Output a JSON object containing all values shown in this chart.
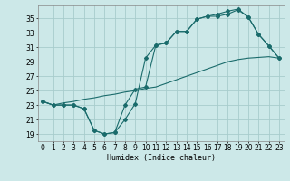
{
  "xlabel": "Humidex (Indice chaleur)",
  "bg_color": "#cce8e8",
  "grid_color": "#a8cccc",
  "line_color": "#1a6b6b",
  "xlim": [
    -0.5,
    23.5
  ],
  "ylim": [
    18.0,
    36.8
  ],
  "xticks": [
    0,
    1,
    2,
    3,
    4,
    5,
    6,
    7,
    8,
    9,
    10,
    11,
    12,
    13,
    14,
    15,
    16,
    17,
    18,
    19,
    20,
    21,
    22,
    23
  ],
  "yticks": [
    19,
    21,
    23,
    25,
    27,
    29,
    31,
    33,
    35
  ],
  "line1_x": [
    0,
    1,
    2,
    3,
    4,
    5,
    6,
    7,
    8,
    9,
    10,
    11,
    12,
    13,
    14,
    15,
    16,
    17,
    18,
    19,
    20,
    21,
    22,
    23
  ],
  "line1_y": [
    23.5,
    23.0,
    23.0,
    23.0,
    22.5,
    19.5,
    19.0,
    19.2,
    21.0,
    23.2,
    29.5,
    31.3,
    31.6,
    33.2,
    33.2,
    34.9,
    35.3,
    35.6,
    36.0,
    36.3,
    35.2,
    32.8,
    31.2,
    29.5
  ],
  "line2_x": [
    0,
    1,
    2,
    3,
    4,
    5,
    6,
    7,
    8,
    9,
    10,
    11,
    12,
    13,
    14,
    15,
    16,
    17,
    18,
    19,
    20,
    21,
    22,
    23
  ],
  "line2_y": [
    23.5,
    23.0,
    23.0,
    23.0,
    22.5,
    19.5,
    19.0,
    19.2,
    23.0,
    25.2,
    25.5,
    31.3,
    31.6,
    33.2,
    33.2,
    34.9,
    35.3,
    35.3,
    35.6,
    36.2,
    35.2,
    32.8,
    31.2,
    29.5
  ],
  "line3_x": [
    0,
    1,
    2,
    3,
    4,
    5,
    6,
    7,
    8,
    9,
    10,
    11,
    12,
    13,
    14,
    15,
    16,
    17,
    18,
    19,
    20,
    21,
    22,
    23
  ],
  "line3_y": [
    23.5,
    23.0,
    23.3,
    23.5,
    23.8,
    24.0,
    24.3,
    24.5,
    24.8,
    25.0,
    25.3,
    25.5,
    26.0,
    26.5,
    27.0,
    27.5,
    28.0,
    28.5,
    29.0,
    29.3,
    29.5,
    29.6,
    29.7,
    29.5
  ]
}
